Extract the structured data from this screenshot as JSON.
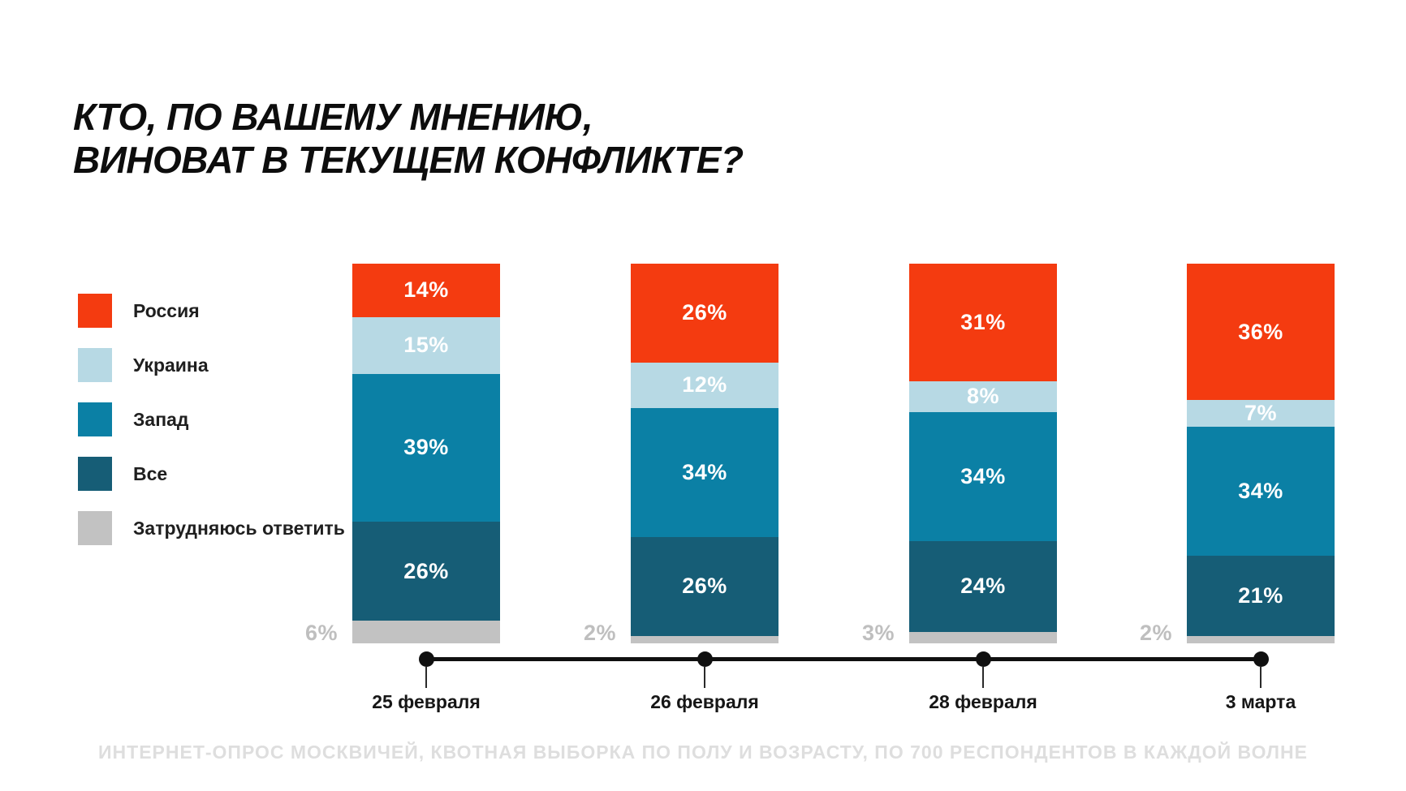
{
  "title_lines": {
    "line1": "КТО, ПО ВАШЕМУ МНЕНИЮ,",
    "line2": "ВИНОВАТ В ТЕКУЩЕМ КОНФЛИКТЕ?"
  },
  "footer_note": "ИНТЕРНЕТ-ОПРОС МОСКВИЧЕЙ, КВОТНАЯ ВЫБОРКА ПО ПОЛУ И ВОЗРАСТУ, ПО 700 РЕСПОНДЕНТОВ В КАЖДОЙ ВОЛНЕ",
  "colors": {
    "russia_red": "#f43b10",
    "ukraine_light_blue": "#b7d9e4",
    "west_teal": "#0b80a5",
    "all_dark_teal": "#165d76",
    "dk_gray": "#c2c2c2",
    "outside_label_gray": "#bfbfbf",
    "axis_black": "#101010",
    "footer_gray": "#dedede"
  },
  "chart_data": {
    "type": "bar",
    "stacked": true,
    "stacked_total": 100,
    "title": "КТО, ПО ВАШЕМУ МНЕНИЮ, ВИНОВАТ В ТЕКУЩЕМ КОНФЛИКТЕ?",
    "legend_position": "left",
    "grid": false,
    "value_suffix": "%",
    "categories": [
      "25 февраля",
      "26 февраля",
      "28 февраля",
      "3 марта"
    ],
    "series": [
      {
        "name": "Россия",
        "color": "#f43b10",
        "values": [
          14,
          26,
          31,
          36
        ]
      },
      {
        "name": "Украина",
        "color": "#b7d9e4",
        "values": [
          15,
          12,
          8,
          7
        ]
      },
      {
        "name": "Запад",
        "color": "#0b80a5",
        "values": [
          39,
          34,
          34,
          34
        ]
      },
      {
        "name": "Все",
        "color": "#165d76",
        "values": [
          26,
          26,
          24,
          21
        ]
      },
      {
        "name": "Затрудняюсь ответить",
        "color": "#c2c2c2",
        "values": [
          6,
          2,
          3,
          2
        ],
        "label_outside": true,
        "label_color": "#bfbfbf"
      }
    ],
    "footnote": "ИНТЕРНЕТ-ОПРОС МОСКВИЧЕЙ, КВОТНАЯ ВЫБОРКА ПО ПОЛУ И ВОЗРАСТУ, ПО 700 РЕСПОНДЕНТОВ В КАЖДОЙ ВОЛНЕ"
  }
}
